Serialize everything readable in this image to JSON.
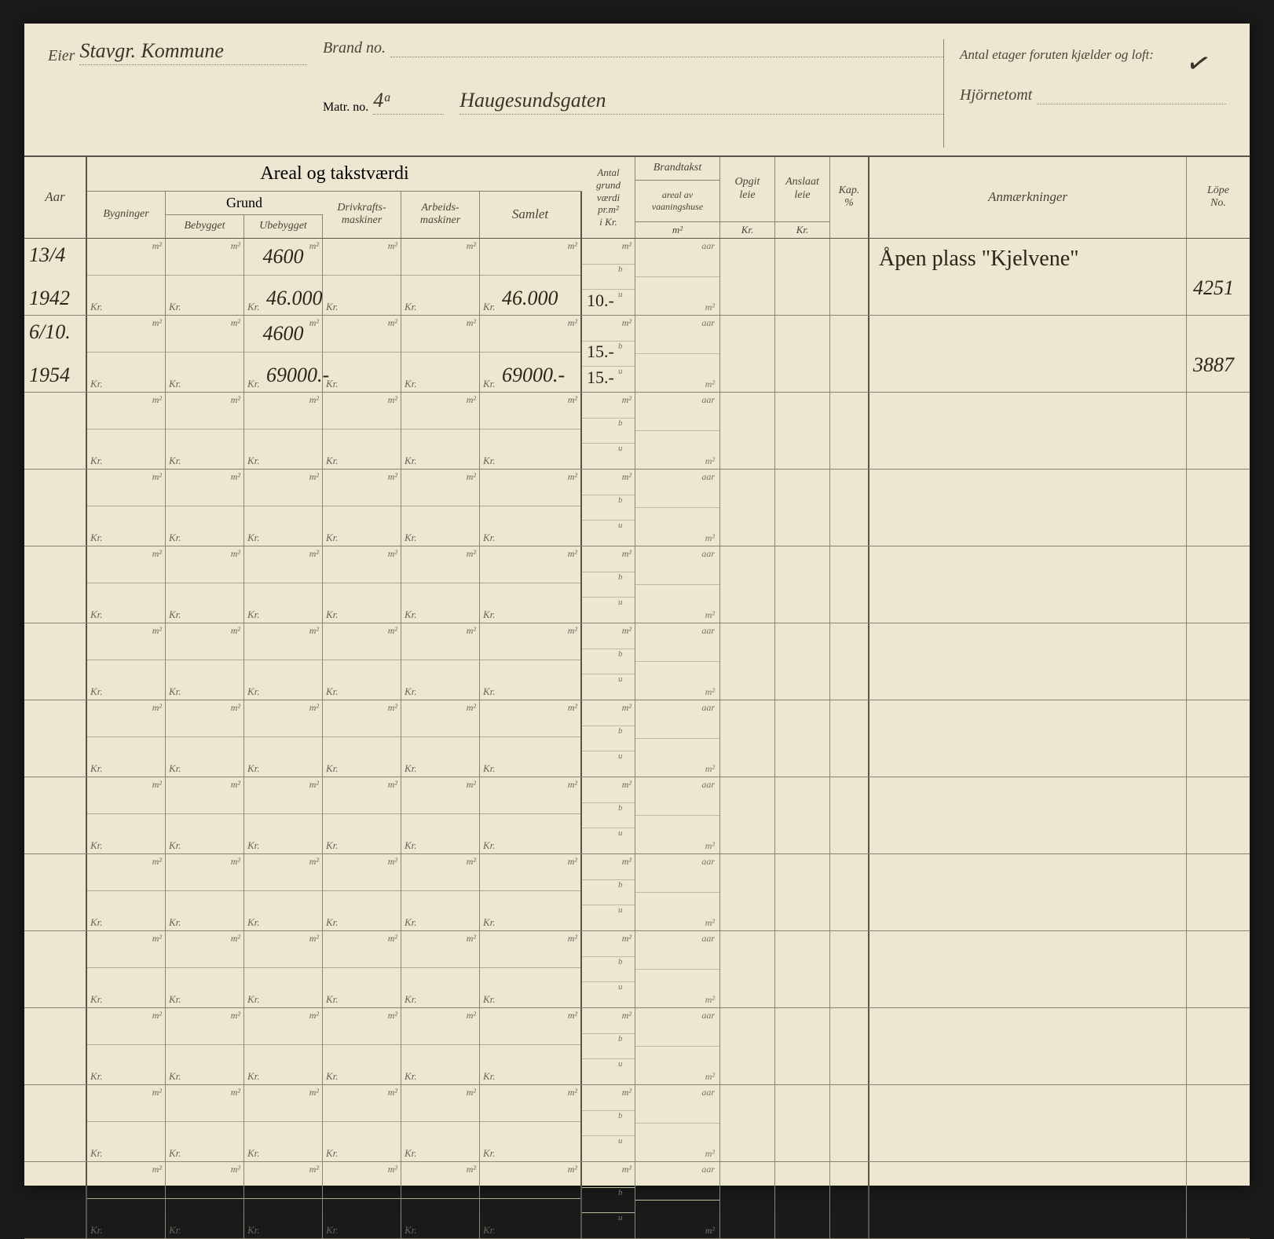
{
  "header": {
    "eier_label": "Eier",
    "eier_value": "Stavgr. Kommune",
    "brandno_label": "Brand no.",
    "brandno_value": "",
    "matrno_label": "Matr. no.",
    "matrno_num": "4ᵃ",
    "matrno_street": "Haugesundsgaten",
    "antal_etager_label": "Antal etager foruten kjælder og loft:",
    "hjornetomt_label": "Hjörnetomt",
    "checkmark": "✓"
  },
  "columns": {
    "aar": "Aar",
    "areal_title": "Areal og takstværdi",
    "bygninger": "Bygninger",
    "grund": "Grund",
    "bebygget": "Bebygget",
    "ubebygget": "Ubebygget",
    "drivkraft": "Drivkrafts-\nmaskiner",
    "arbeids": "Arbeids-\nmaskiner",
    "samlet": "Samlet",
    "antal_grund": "Antal\ngrund\nværdi\npr.m²\ni Kr.",
    "brandtakst": "Brandtakst",
    "brandtakst_sub": "areal av\nvaaningshuse",
    "opgit": "Opgit\nleie",
    "anslaat": "Anslaat\nleie",
    "kap": "Kap.\n%",
    "anm": "Anmærkninger",
    "lope": "Löpe\nNo.",
    "unit_m2": "m²",
    "unit_kr": "Kr.",
    "sub_b": "b",
    "sub_u": "u",
    "sub_aar": "aar"
  },
  "rows": [
    {
      "date": "13/4",
      "year": "1942",
      "ubebygget_m2": "4600",
      "ubebygget_kr": "46.000",
      "samlet_kr": "46.000",
      "antal_u": "10.-",
      "anm": "Åpen plass \"Kjelvene\"",
      "lope": "4251"
    },
    {
      "date": "6/10.",
      "year": "1954",
      "ubebygget_m2": "4600",
      "ubebygget_kr": "69000.-",
      "samlet_kr": "69000.-",
      "antal_b": "15.-",
      "antal_u": "15.-",
      "lope": "3887"
    },
    {},
    {},
    {},
    {},
    {},
    {},
    {},
    {},
    {},
    {},
    {}
  ],
  "colors": {
    "paper": "#ede6d0",
    "line_dark": "#5a5548",
    "line_light": "#8a8572",
    "line_faint": "#c0b99f",
    "text_print": "#4a4538",
    "text_hand": "#2a2518",
    "background": "#1a1a1a"
  }
}
